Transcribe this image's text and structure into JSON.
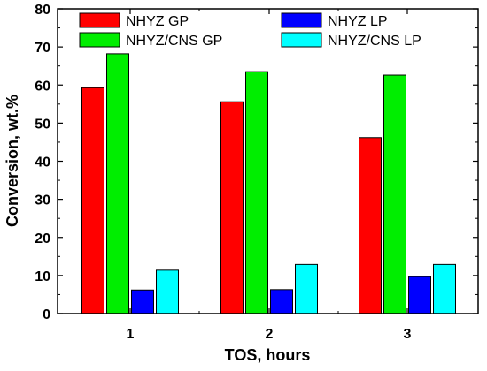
{
  "chart_data": {
    "type": "bar",
    "title": "",
    "xlabel": "TOS, hours",
    "ylabel": "Conversion, wt.%",
    "categories": [
      "1",
      "2",
      "3"
    ],
    "ylim": [
      0,
      80
    ],
    "yticks": [
      "0",
      "10",
      "20",
      "30",
      "40",
      "50",
      "60",
      "70",
      "80"
    ],
    "grid": false,
    "legend_position": "top",
    "series": [
      {
        "name": "NHYZ GP",
        "color": "#ff0000",
        "values": [
          59.3,
          55.6,
          46.2
        ]
      },
      {
        "name": "NHYZ/CNS GP",
        "color": "#00ee00",
        "values": [
          68.2,
          63.5,
          62.6
        ]
      },
      {
        "name": "NHYZ LP",
        "color": "#0000ff",
        "values": [
          6.2,
          6.3,
          9.7
        ]
      },
      {
        "name": "NHYZ/CNS LP",
        "color": "#00ffff",
        "values": [
          11.4,
          12.9,
          12.9
        ]
      }
    ]
  }
}
